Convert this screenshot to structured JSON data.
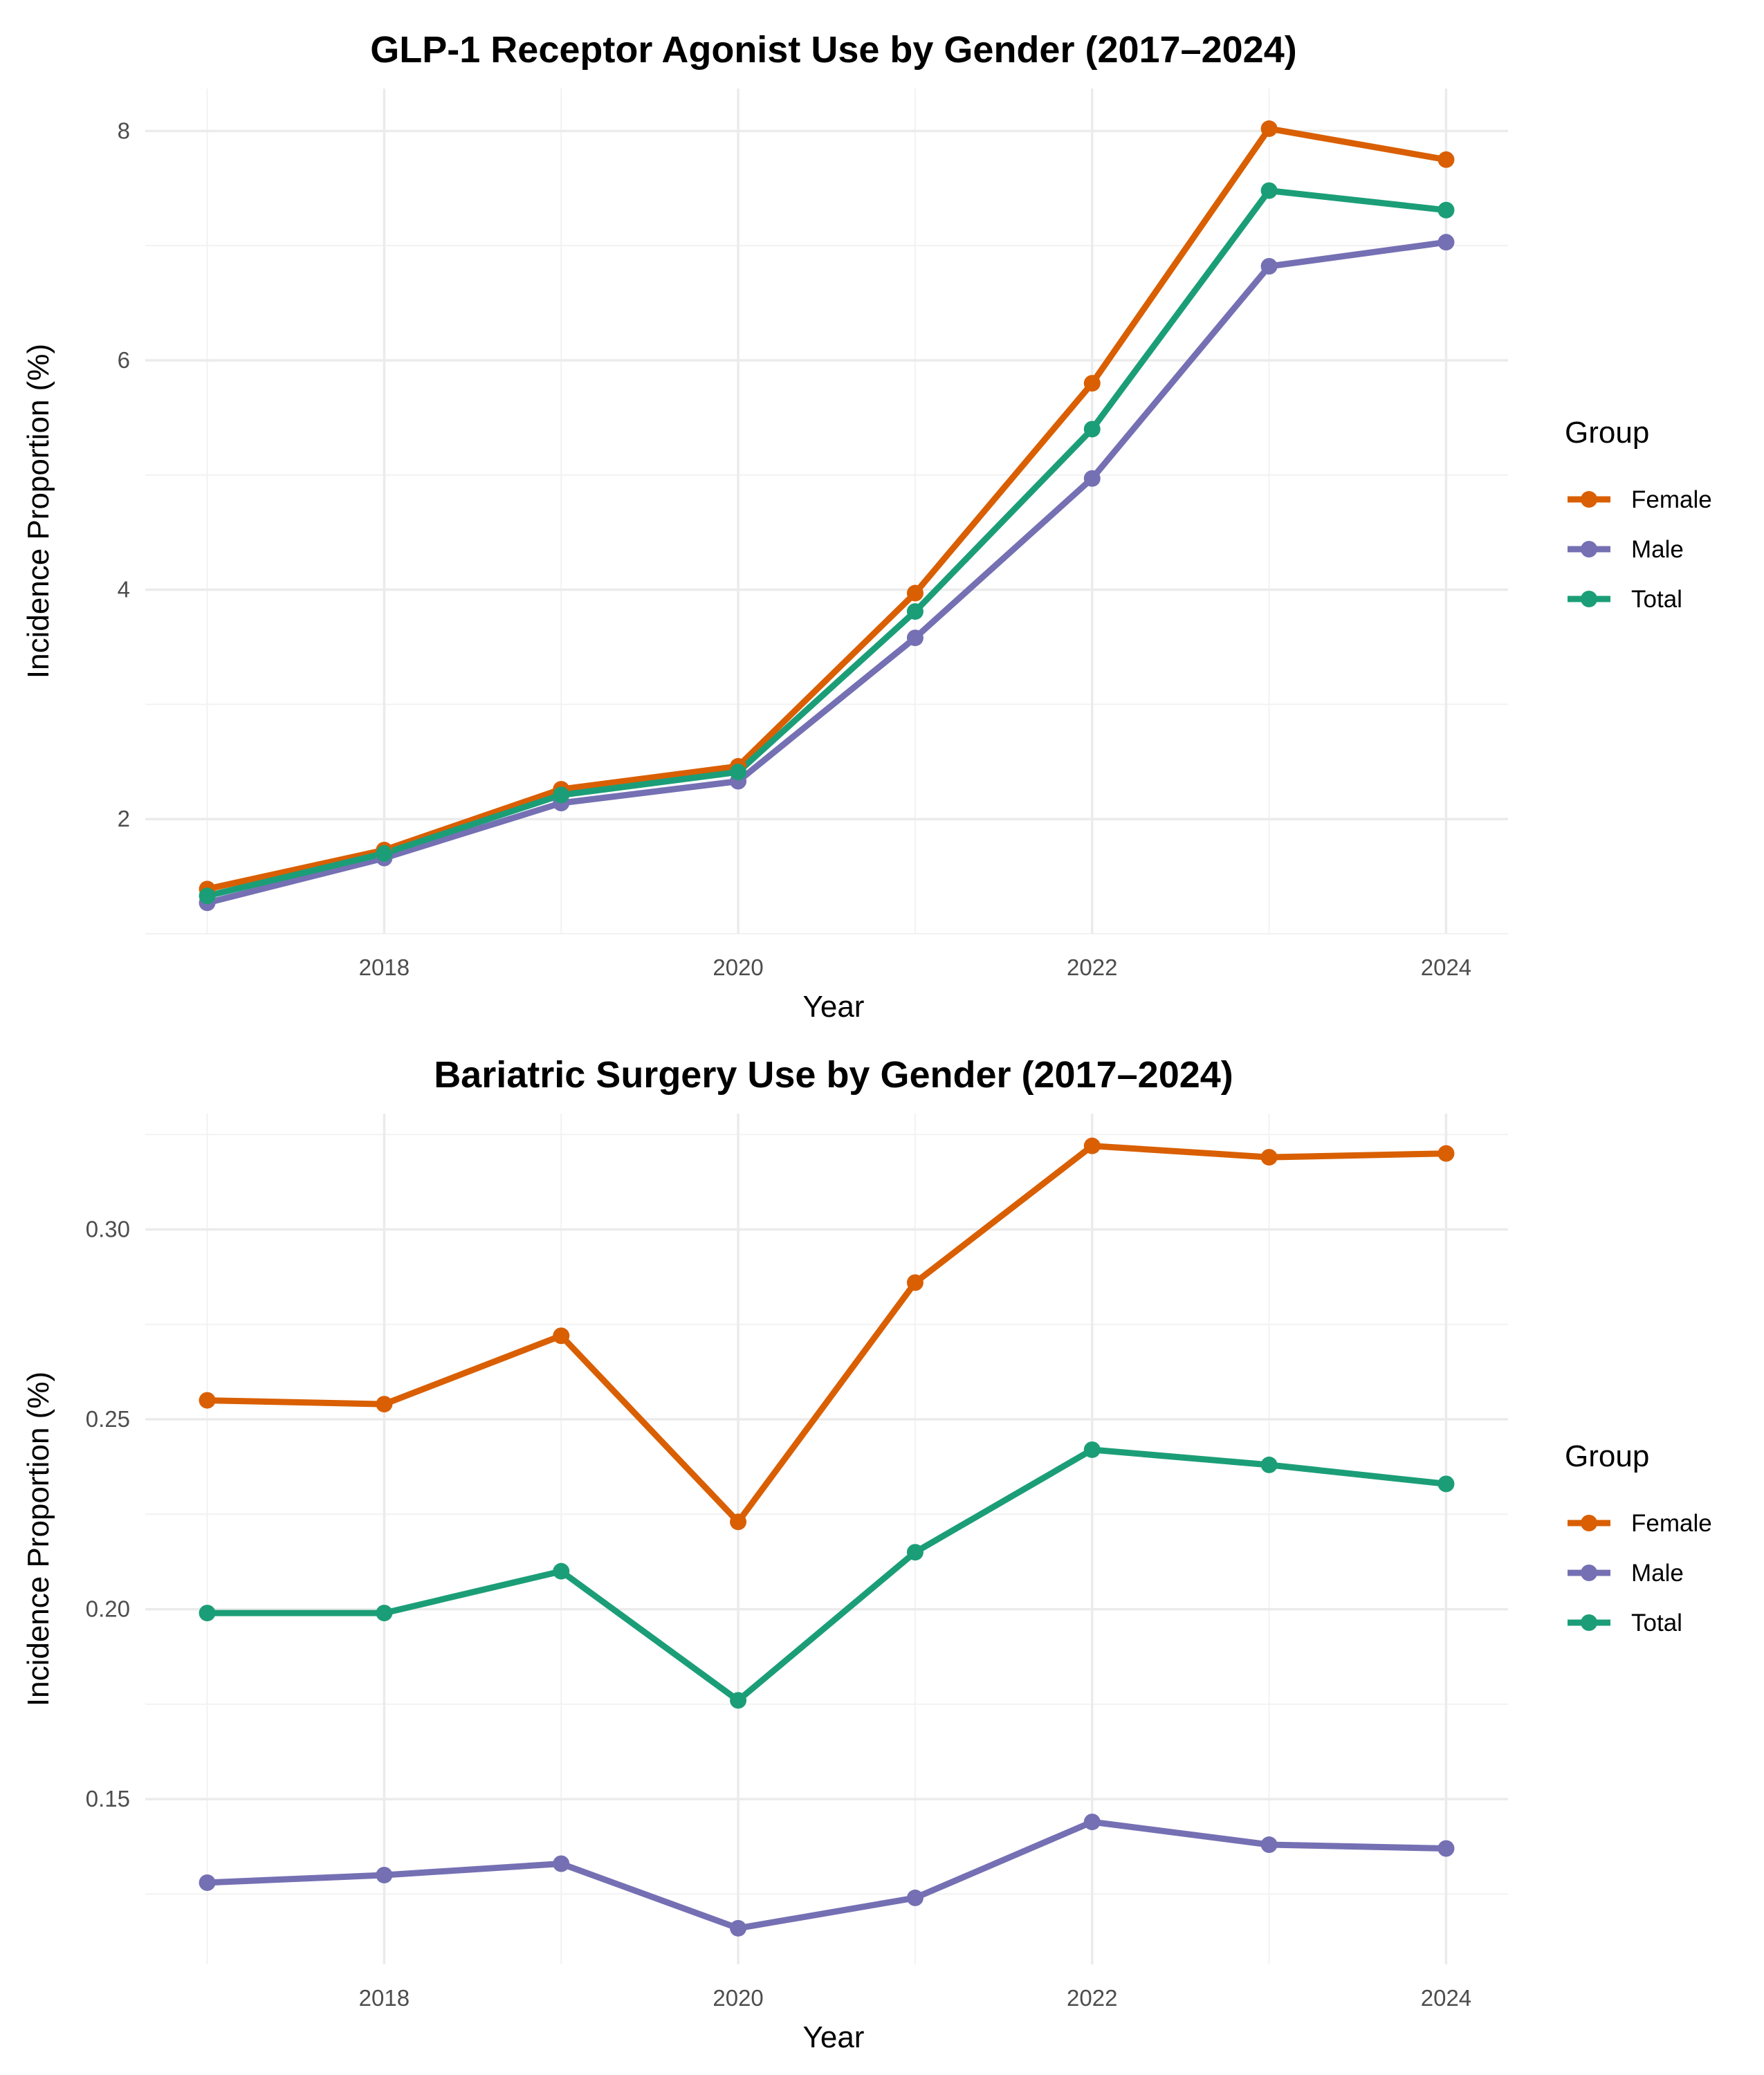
{
  "chart_data": [
    {
      "type": "line",
      "title": "GLP-1 Receptor Agonist Use by Gender (2017–2024)",
      "xlabel": "Year",
      "ylabel": "Incidence Proportion (%)",
      "x": [
        2017,
        2018,
        2019,
        2020,
        2021,
        2022,
        2023,
        2024
      ],
      "xlim": [
        2016.65,
        2024.35
      ],
      "ylim": [
        1.0,
        8.37
      ],
      "x_ticks": [
        2018,
        2020,
        2022,
        2024
      ],
      "x_tick_labels": [
        "2018",
        "2020",
        "2022",
        "2024"
      ],
      "y_ticks": [
        2,
        4,
        6,
        8
      ],
      "y_tick_labels": [
        "2",
        "4",
        "6",
        "8"
      ],
      "y_minor_ticks": [
        1,
        3,
        5,
        7
      ],
      "grid": true,
      "legend": {
        "title": "Group",
        "position": "right"
      },
      "series": [
        {
          "name": "Female",
          "color": "#d95f02",
          "values": [
            1.39,
            1.73,
            2.26,
            2.46,
            3.97,
            5.8,
            8.02,
            7.75
          ]
        },
        {
          "name": "Male",
          "color": "#7570b3",
          "values": [
            1.27,
            1.66,
            2.14,
            2.33,
            3.58,
            4.97,
            6.82,
            7.03
          ]
        },
        {
          "name": "Total",
          "color": "#1b9e77",
          "values": [
            1.33,
            1.7,
            2.21,
            2.41,
            3.81,
            5.4,
            7.48,
            7.31
          ]
        }
      ]
    },
    {
      "type": "line",
      "title": "Bariatric Surgery Use by Gender (2017–2024)",
      "xlabel": "Year",
      "ylabel": "Incidence Proportion (%)",
      "x": [
        2017,
        2018,
        2019,
        2020,
        2021,
        2022,
        2023,
        2024
      ],
      "xlim": [
        2016.65,
        2024.35
      ],
      "ylim": [
        0.1065,
        0.3305
      ],
      "x_ticks": [
        2018,
        2020,
        2022,
        2024
      ],
      "x_tick_labels": [
        "2018",
        "2020",
        "2022",
        "2024"
      ],
      "y_ticks": [
        0.15,
        0.2,
        0.25,
        0.3
      ],
      "y_tick_labels": [
        "0.15",
        "0.20",
        "0.25",
        "0.30"
      ],
      "y_minor_ticks": [
        0.125,
        0.175,
        0.225,
        0.275,
        0.325
      ],
      "grid": true,
      "legend": {
        "title": "Group",
        "position": "right"
      },
      "series": [
        {
          "name": "Female",
          "color": "#d95f02",
          "values": [
            0.255,
            0.254,
            0.272,
            0.223,
            0.286,
            0.322,
            0.319,
            0.32
          ]
        },
        {
          "name": "Male",
          "color": "#7570b3",
          "values": [
            0.128,
            0.13,
            0.133,
            0.116,
            0.124,
            0.144,
            0.138,
            0.137
          ]
        },
        {
          "name": "Total",
          "color": "#1b9e77",
          "values": [
            0.199,
            0.199,
            0.21,
            0.176,
            0.215,
            0.242,
            0.238,
            0.233
          ]
        }
      ]
    }
  ]
}
